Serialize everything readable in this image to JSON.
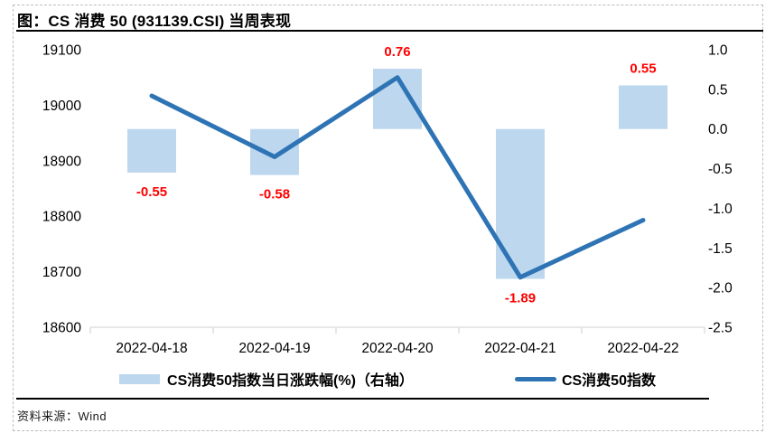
{
  "header": {
    "title": "图：CS 消费 50 (931139.CSI) 当周表现"
  },
  "chart_data": {
    "type": "combo-bar-line",
    "categories": [
      "2022-04-18",
      "2022-04-19",
      "2022-04-20",
      "2022-04-21",
      "2022-04-22"
    ],
    "series": [
      {
        "name": "CS消费50指数当日涨跌幅(%)（右轴）",
        "type": "bar",
        "axis": "right",
        "values": [
          -0.55,
          -0.58,
          0.76,
          -1.89,
          0.55
        ],
        "color": "#BDD7EE",
        "label_color": "#FF0000"
      },
      {
        "name": "CS消费50指数",
        "type": "line",
        "axis": "left",
        "values": [
          19017,
          18907,
          19050,
          18690,
          18793
        ],
        "color": "#2E74B5"
      }
    ],
    "bar_labels": [
      "-0.55",
      "-0.58",
      "0.76",
      "-1.89",
      "0.55"
    ],
    "left_axis": {
      "min": 18600,
      "max": 19100,
      "tick_step": 100,
      "ticks": [
        "19100",
        "19000",
        "18900",
        "18800",
        "18700",
        "18600"
      ]
    },
    "right_axis": {
      "min": -2.5,
      "max": 1.0,
      "tick_step": 0.5,
      "ticks": [
        "1.0",
        "0.5",
        "0.0",
        "-0.5",
        "-1.0",
        "-1.5",
        "-2.0",
        "-2.5"
      ]
    },
    "grid": false,
    "legend_position": "bottom",
    "axis_line_color": "#D9D9D9"
  },
  "legend": {
    "bar_label": "CS消费50指数当日涨跌幅(%)（右轴）",
    "line_label": "CS消费50指数"
  },
  "footer": {
    "source": "资料来源：Wind"
  }
}
